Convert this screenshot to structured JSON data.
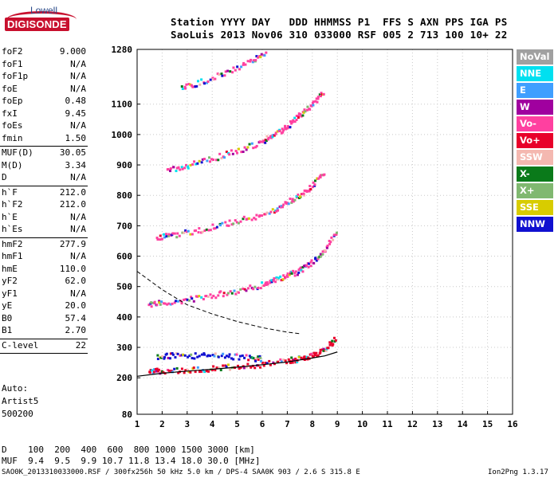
{
  "logo": {
    "top": "Lowell",
    "bottom": "DIGISONDE"
  },
  "header": {
    "line1": "Station YYYY DAY   DDD HHMMSS P1  FFS S AXN PPS IGA PS",
    "line2": "SaoLuis 2013 Nov06 310 033000 RSF 005 2 713 100 10+ 22"
  },
  "params_group1": [
    {
      "name": "foF2",
      "value": "9.000"
    },
    {
      "name": "foF1",
      "value": "N/A"
    },
    {
      "name": "foF1p",
      "value": "N/A"
    },
    {
      "name": "foE",
      "value": "N/A"
    },
    {
      "name": "foEp",
      "value": "0.48"
    },
    {
      "name": "fxI",
      "value": "9.45"
    },
    {
      "name": "foEs",
      "value": "N/A"
    },
    {
      "name": "fmin",
      "value": "1.50"
    }
  ],
  "params_group2": [
    {
      "name": "MUF(D)",
      "value": "30.05"
    },
    {
      "name": "M(D)",
      "value": "3.34"
    },
    {
      "name": "D",
      "value": "N/A"
    }
  ],
  "params_group3": [
    {
      "name": "h`F",
      "value": "212.0"
    },
    {
      "name": "h`F2",
      "value": "212.0"
    },
    {
      "name": "h`E",
      "value": "N/A"
    },
    {
      "name": "h`Es",
      "value": "N/A"
    }
  ],
  "params_group4": [
    {
      "name": "hmF2",
      "value": "277.9"
    },
    {
      "name": "hmF1",
      "value": "N/A"
    },
    {
      "name": "hmE",
      "value": "110.0"
    },
    {
      "name": "yF2",
      "value": "62.0"
    },
    {
      "name": "yF1",
      "value": "N/A"
    },
    {
      "name": "yE",
      "value": "20.0"
    },
    {
      "name": "B0",
      "value": "57.4"
    },
    {
      "name": "B1",
      "value": "2.70"
    }
  ],
  "params_group5": [
    {
      "name": "C-level",
      "value": "22"
    }
  ],
  "autoscale": {
    "line1": "Auto:",
    "line2": "Artist5",
    "line3": "500200"
  },
  "legend": [
    {
      "label": "NoVal",
      "bg": "#a0a0a0",
      "fg": "#ffffff"
    },
    {
      "label": "NNE",
      "bg": "#00e0f0",
      "fg": "#ffffff"
    },
    {
      "label": "E",
      "bg": "#3f9fff",
      "fg": "#ffffff"
    },
    {
      "label": "W",
      "bg": "#a0009f",
      "fg": "#ffffff"
    },
    {
      "label": "Vo-",
      "bg": "#ff40a0",
      "fg": "#ffffff"
    },
    {
      "label": "Vo+",
      "bg": "#e8002a",
      "fg": "#ffffff"
    },
    {
      "label": "SSW",
      "bg": "#f4b8b0",
      "fg": "#ffffff"
    },
    {
      "label": "X-",
      "bg": "#0a7a1a",
      "fg": "#ffffff"
    },
    {
      "label": "X+",
      "bg": "#80b870",
      "fg": "#ffffff"
    },
    {
      "label": "SSE",
      "bg": "#d8cc00",
      "fg": "#ffffff"
    },
    {
      "label": "NNW",
      "bg": "#1010d0",
      "fg": "#ffffff"
    }
  ],
  "footer": {
    "d_row": "D    100  200  400  600  800 1000 1500 3000 [km]",
    "muf_row": "MUF  9.4  9.5  9.9 10.7 11.8 13.4 18.0 30.0 [MHz]",
    "file_info": "SAO0K_2013310033000.RSF / 300fx256h 50 kHz 5.0 km / DPS-4 SAA0K 903 / 2.6 S 315.8 E",
    "version": "Ion2Png 1.3.17"
  },
  "chart_data": {
    "type": "scatter",
    "xlim": [
      1,
      16
    ],
    "x_ticks": [
      1,
      2,
      3,
      4,
      5,
      6,
      7,
      8,
      9,
      10,
      11,
      12,
      13,
      14,
      15,
      16
    ],
    "ylim": [
      80,
      1280
    ],
    "y_ticks": [
      80,
      200,
      300,
      400,
      500,
      600,
      700,
      800,
      900,
      1000,
      1100,
      1280
    ],
    "grid": true,
    "legend_position": "right",
    "traces": [
      {
        "name": "F2 trace",
        "color": "#e8002a",
        "x": [
          1.5,
          2,
          3,
          4,
          5,
          6,
          7,
          7.5,
          8,
          8.5,
          9
        ],
        "y": [
          218,
          222,
          226,
          230,
          236,
          243,
          255,
          262,
          272,
          292,
          330
        ]
      },
      {
        "name": "2-hop echo",
        "color": "#ff40a0",
        "x": [
          1.5,
          2,
          3,
          4,
          5,
          6,
          6.5,
          7,
          7.5,
          8,
          8.5,
          9
        ],
        "y": [
          440,
          445,
          455,
          470,
          485,
          505,
          520,
          535,
          550,
          580,
          620,
          680
        ]
      },
      {
        "name": "3-hop echo",
        "color": "#ff40a0",
        "x": [
          1.8,
          2.5,
          3.5,
          4.5,
          5.5,
          6.5,
          7,
          7.5,
          8,
          8.5
        ],
        "y": [
          660,
          670,
          685,
          705,
          725,
          750,
          775,
          800,
          830,
          880
        ]
      },
      {
        "name": "4-hop echo",
        "color": "#ff40a0",
        "x": [
          2.2,
          3,
          4,
          5,
          6,
          6.5,
          7,
          7.5,
          8,
          8.5
        ],
        "y": [
          880,
          895,
          920,
          945,
          975,
          1000,
          1025,
          1060,
          1100,
          1140
        ]
      },
      {
        "name": "5-hop echo",
        "color": "#ff40a0",
        "x": [
          2.8,
          3.5,
          4.5,
          5.5,
          6.2
        ],
        "y": [
          1150,
          1170,
          1200,
          1235,
          1270
        ]
      },
      {
        "name": "Spread F",
        "color": "#1010d0",
        "x": [
          1.8,
          2.5,
          3.5,
          4.5,
          5.5,
          6
        ],
        "y": [
          270,
          272,
          272,
          272,
          265,
          262
        ]
      }
    ],
    "profile_curve": {
      "x": [
        1,
        2,
        3,
        4,
        5,
        6,
        7,
        8,
        8.5,
        9
      ],
      "y": [
        205,
        215,
        222,
        228,
        235,
        243,
        252,
        265,
        272,
        285
      ]
    },
    "muf_curve": {
      "x": [
        1,
        2,
        3,
        4,
        5,
        6,
        7,
        7.5
      ],
      "y": [
        550,
        490,
        440,
        410,
        385,
        365,
        350,
        345
      ]
    }
  }
}
